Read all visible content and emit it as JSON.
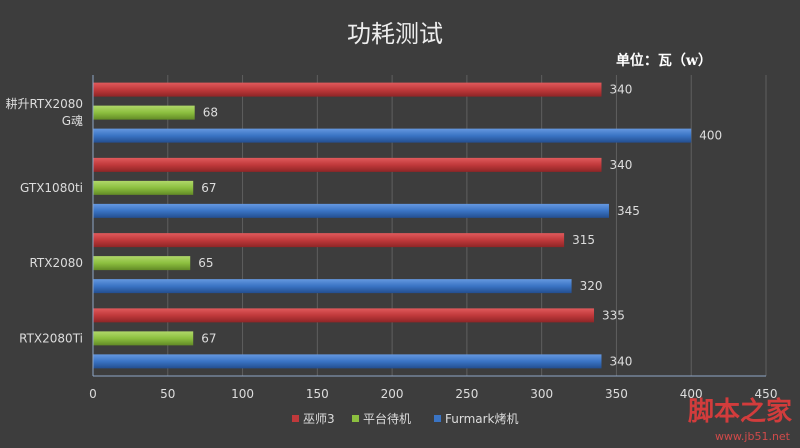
{
  "chart_data": {
    "type": "bar",
    "orientation": "horizontal",
    "title": "功耗测试",
    "unit_label": "单位：瓦（w）",
    "categories": [
      [
        "耕升RTX2080",
        "G魂"
      ],
      [
        "GTX1080ti"
      ],
      [
        "RTX2080"
      ],
      [
        "RTX2080Ti"
      ]
    ],
    "series": [
      {
        "name": "巫师3",
        "values": [
          340,
          340,
          315,
          335
        ],
        "color": "#c0393b"
      },
      {
        "name": "平台待机",
        "values": [
          68,
          67,
          65,
          67
        ],
        "color": "#8cbf3f"
      },
      {
        "name": "Furmark烤机",
        "values": [
          400,
          345,
          320,
          340
        ],
        "color": "#3a74c4"
      }
    ],
    "xlim": [
      0,
      450
    ],
    "xticks": [
      0,
      50,
      100,
      150,
      200,
      250,
      300,
      350,
      400,
      450
    ],
    "grid": true,
    "legend": "bottom"
  },
  "watermark": {
    "text": "脚本之家",
    "url": "www.jb51.net"
  }
}
